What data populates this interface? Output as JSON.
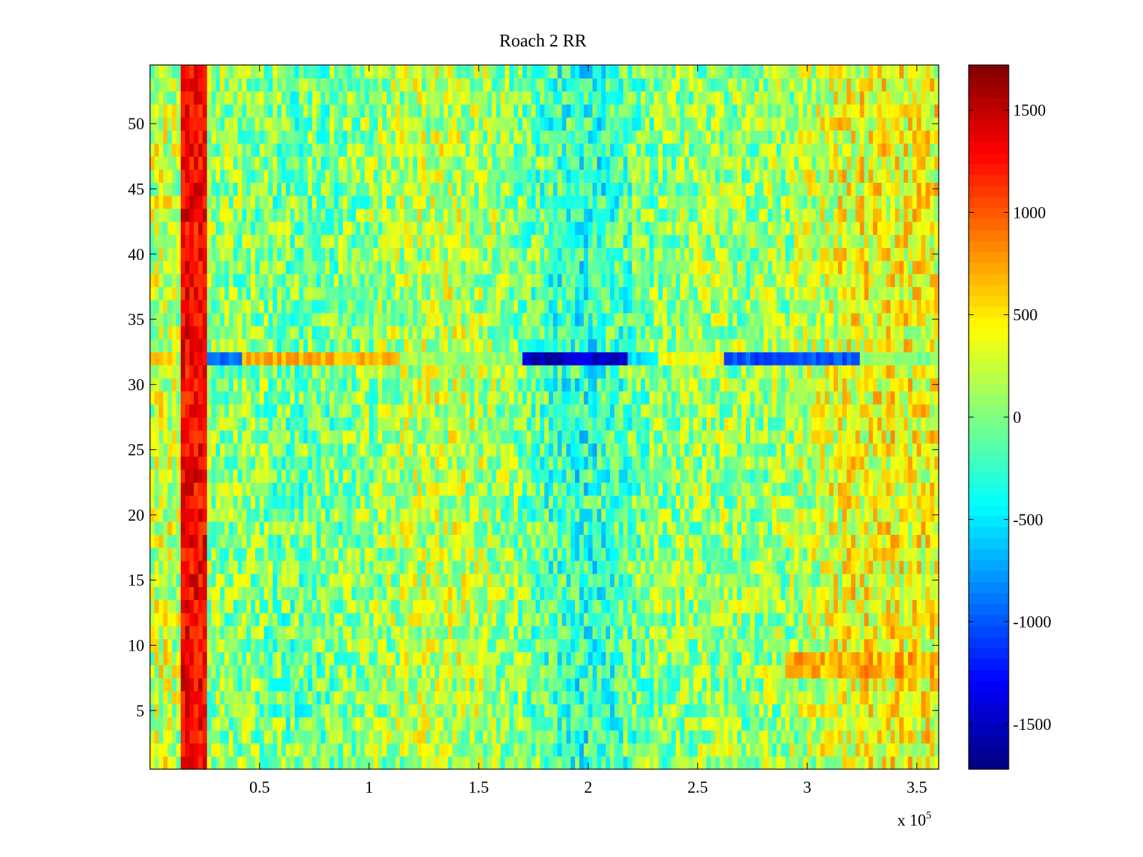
{
  "chart_data": {
    "type": "heatmap",
    "title": "Roach 2 RR",
    "xlabel": "",
    "ylabel": "",
    "x_exponent_label": {
      "base": "x 10",
      "exp": "5"
    },
    "xlim": [
      0,
      360000
    ],
    "ylim": [
      0.5,
      54.5
    ],
    "x_ticks": [
      {
        "value": 50000,
        "label": "0.5"
      },
      {
        "value": 100000,
        "label": "1"
      },
      {
        "value": 150000,
        "label": "1.5"
      },
      {
        "value": 200000,
        "label": "2"
      },
      {
        "value": 250000,
        "label": "2.5"
      },
      {
        "value": 300000,
        "label": "3"
      },
      {
        "value": 350000,
        "label": "3.5"
      }
    ],
    "y_ticks": [
      {
        "value": 5,
        "label": "5"
      },
      {
        "value": 10,
        "label": "10"
      },
      {
        "value": 15,
        "label": "15"
      },
      {
        "value": 20,
        "label": "20"
      },
      {
        "value": 25,
        "label": "25"
      },
      {
        "value": 30,
        "label": "30"
      },
      {
        "value": 35,
        "label": "35"
      },
      {
        "value": 40,
        "label": "40"
      },
      {
        "value": 45,
        "label": "45"
      },
      {
        "value": 50,
        "label": "50"
      }
    ],
    "colormap": "jet",
    "clim": [
      -1720,
      1720
    ],
    "colorbar_ticks": [
      {
        "value": 1500,
        "label": "1500"
      },
      {
        "value": 1000,
        "label": "1000"
      },
      {
        "value": 500,
        "label": "500"
      },
      {
        "value": 0,
        "label": "0"
      },
      {
        "value": -500,
        "label": "-500"
      },
      {
        "value": -1000,
        "label": "-1000"
      },
      {
        "value": -1500,
        "label": "-1500"
      }
    ],
    "rows": 54,
    "features": [
      {
        "description": "vertical high-value band",
        "x_range": [
          14000,
          26000
        ],
        "rows": [
          1,
          54
        ],
        "value": 1300
      },
      {
        "description": "horizontal band",
        "row": 32,
        "segments": [
          {
            "x_range": [
              26000,
              42000
            ],
            "value": -900
          },
          {
            "x_range": [
              42000,
              115000
            ],
            "value": 700
          },
          {
            "x_range": [
              115000,
              170000
            ],
            "value": 100
          },
          {
            "x_range": [
              170000,
              218000
            ],
            "value": -1500
          },
          {
            "x_range": [
              218000,
              232000
            ],
            "value": -500
          },
          {
            "x_range": [
              232000,
              262000
            ],
            "value": 400
          },
          {
            "x_range": [
              262000,
              325000
            ],
            "value": -1000
          },
          {
            "x_range": [
              325000,
              360000
            ],
            "value": 0
          }
        ]
      },
      {
        "description": "low-value column region",
        "x_range": [
          168000,
          228000
        ],
        "value": -400
      },
      {
        "description": "high-value right region",
        "x_range": [
          300000,
          360000
        ],
        "value": 350
      },
      {
        "description": "elevated rows 8-9 right side",
        "x_range": [
          290000,
          360000
        ],
        "rows": [
          8,
          9
        ],
        "value": 700
      }
    ]
  }
}
